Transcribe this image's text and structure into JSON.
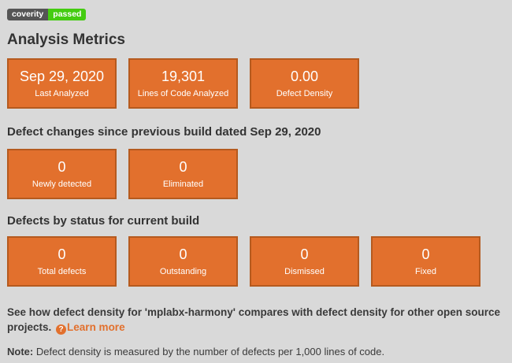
{
  "badge": {
    "left_label": "coverity",
    "right_label": "passed"
  },
  "metrics": {
    "title": "Analysis Metrics",
    "cards": [
      {
        "value": "Sep 29, 2020",
        "label": "Last Analyzed"
      },
      {
        "value": "19,301",
        "label": "Lines of Code Analyzed"
      },
      {
        "value": "0.00",
        "label": "Defect Density"
      }
    ]
  },
  "defect_changes": {
    "heading": "Defect changes since previous build dated Sep 29, 2020",
    "cards": [
      {
        "value": "0",
        "label": "Newly detected"
      },
      {
        "value": "0",
        "label": "Eliminated"
      }
    ]
  },
  "defects_by_status": {
    "heading": "Defects by status for current build",
    "cards": [
      {
        "value": "0",
        "label": "Total defects"
      },
      {
        "value": "0",
        "label": "Outstanding"
      },
      {
        "value": "0",
        "label": "Dismissed"
      },
      {
        "value": "0",
        "label": "Fixed"
      }
    ]
  },
  "footer": {
    "compare_text": "See how defect density for 'mplabx-harmony' compares with defect density for other open source projects.",
    "help_icon_glyph": "?",
    "learn_more_label": "Learn more",
    "note_label": "Note:",
    "note_text": "Defect density is measured by the number of defects per 1,000 lines of code."
  },
  "colors": {
    "background": "#d9d9d9",
    "card_orange": "#e2702d",
    "card_border": "#b55a1f",
    "badge_gray": "#555555",
    "badge_green": "#44cc11",
    "link_orange": "#e2702d",
    "heading_text": "#333333"
  }
}
